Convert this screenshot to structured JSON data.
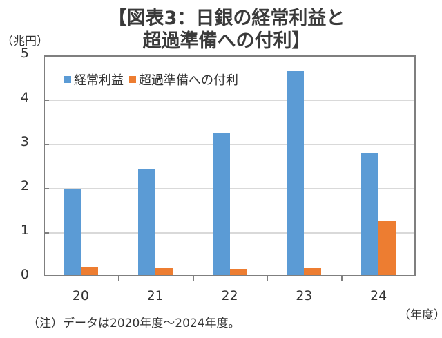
{
  "title": {
    "line1": "【図表3：日銀の経常利益と",
    "line2": "超過準備への付利】"
  },
  "y_unit": "（兆円）",
  "x_unit": "（年度）",
  "note": "（注）データは2020年度～2024年度。",
  "colors": {
    "series1": "#5b9bd5",
    "series2": "#ed7d31",
    "grid": "#d9d9d9",
    "axis": "#7f7f7f"
  },
  "legend": [
    {
      "label": "経常利益",
      "color": "#5b9bd5"
    },
    {
      "label": "超過準備への付利",
      "color": "#ed7d31"
    }
  ],
  "y_ticks": [
    "0",
    "1",
    "2",
    "3",
    "4",
    "5"
  ],
  "chart_data": {
    "type": "bar",
    "title": "【図表3：日銀の経常利益と超過準備への付利】",
    "xlabel": "（年度）",
    "ylabel": "（兆円）",
    "categories": [
      "20",
      "21",
      "22",
      "23",
      "24"
    ],
    "series": [
      {
        "name": "経常利益",
        "values": [
          1.97,
          2.42,
          3.23,
          4.66,
          2.78
        ]
      },
      {
        "name": "超過準備への付利",
        "values": [
          0.22,
          0.19,
          0.17,
          0.19,
          1.25
        ]
      }
    ],
    "ylim": [
      0,
      5
    ],
    "yticks": [
      0,
      1,
      2,
      3,
      4,
      5
    ],
    "grid": true,
    "legend_position": "top-left inside plot",
    "note": "（注）データは2020年度～2024年度。"
  }
}
